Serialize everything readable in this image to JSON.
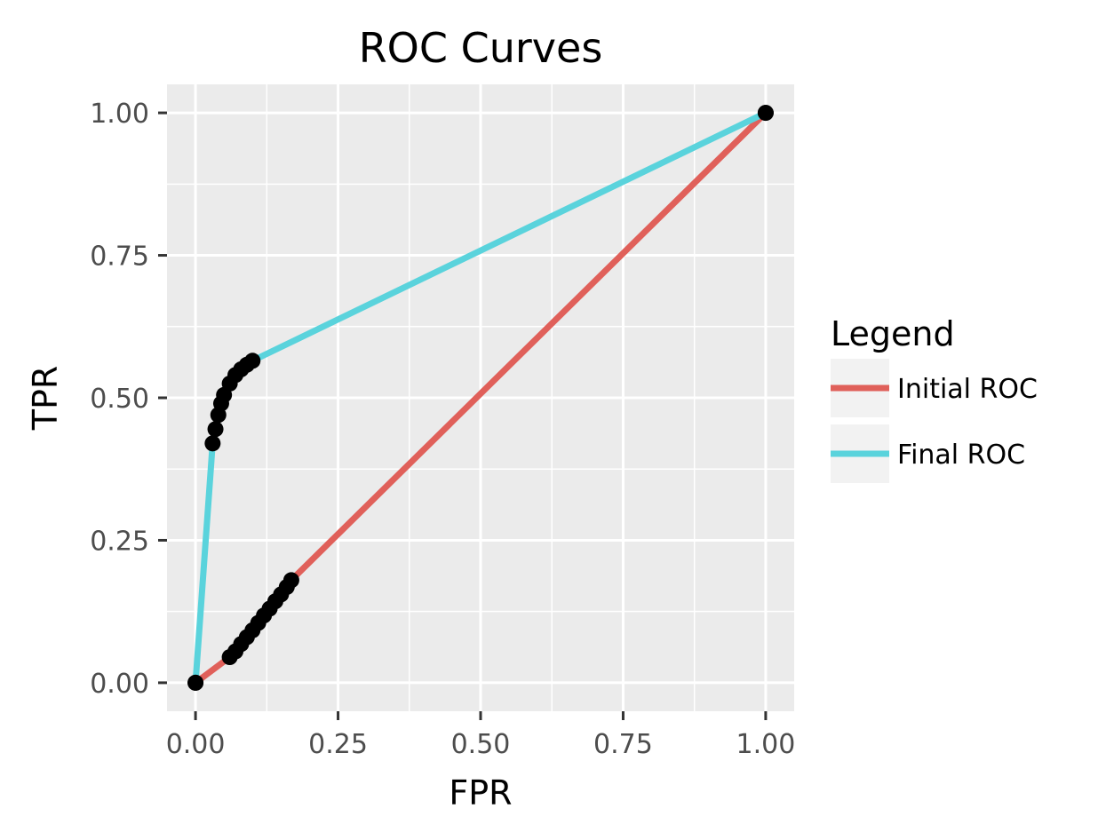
{
  "chart_data": {
    "type": "line",
    "title": "ROC Curves",
    "xlabel": "FPR",
    "ylabel": "TPR",
    "xlim": [
      -0.05,
      1.05
    ],
    "ylim": [
      -0.05,
      1.05
    ],
    "x_ticks": [
      0,
      0.25,
      0.5,
      0.75,
      1
    ],
    "y_ticks": [
      0,
      0.25,
      0.5,
      0.75,
      1
    ],
    "x_tick_labels": [
      "0.00",
      "0.25",
      "0.50",
      "0.75",
      "1.00"
    ],
    "y_tick_labels": [
      "0.00",
      "0.25",
      "0.50",
      "0.75",
      "1.00"
    ],
    "grid": true,
    "legend": {
      "title": "Legend",
      "position": "right"
    },
    "series": [
      {
        "name": "Initial ROC",
        "color": "#e0605a",
        "points": [
          [
            0,
            0
          ],
          [
            0.06,
            0.045
          ],
          [
            0.07,
            0.055
          ],
          [
            0.08,
            0.068
          ],
          [
            0.09,
            0.08
          ],
          [
            0.1,
            0.092
          ],
          [
            0.11,
            0.105
          ],
          [
            0.12,
            0.118
          ],
          [
            0.13,
            0.13
          ],
          [
            0.14,
            0.143
          ],
          [
            0.15,
            0.155
          ],
          [
            0.16,
            0.168
          ],
          [
            0.168,
            0.18
          ],
          [
            1,
            1
          ]
        ],
        "markers": [
          [
            0,
            0
          ],
          [
            0.06,
            0.045
          ],
          [
            0.07,
            0.055
          ],
          [
            0.08,
            0.068
          ],
          [
            0.09,
            0.08
          ],
          [
            0.1,
            0.092
          ],
          [
            0.11,
            0.105
          ],
          [
            0.12,
            0.118
          ],
          [
            0.13,
            0.13
          ],
          [
            0.14,
            0.143
          ],
          [
            0.15,
            0.155
          ],
          [
            0.16,
            0.168
          ],
          [
            0.168,
            0.18
          ],
          [
            1,
            1
          ]
        ]
      },
      {
        "name": "Final ROC",
        "color": "#5ad3dc",
        "points": [
          [
            0,
            0
          ],
          [
            0.03,
            0.42
          ],
          [
            0.035,
            0.445
          ],
          [
            0.04,
            0.47
          ],
          [
            0.045,
            0.49
          ],
          [
            0.05,
            0.505
          ],
          [
            0.06,
            0.525
          ],
          [
            0.07,
            0.54
          ],
          [
            0.08,
            0.55
          ],
          [
            0.09,
            0.558
          ],
          [
            0.1,
            0.565
          ],
          [
            1,
            1
          ]
        ],
        "markers": [
          [
            0,
            0
          ],
          [
            0.03,
            0.42
          ],
          [
            0.035,
            0.445
          ],
          [
            0.04,
            0.47
          ],
          [
            0.045,
            0.49
          ],
          [
            0.05,
            0.505
          ],
          [
            0.06,
            0.525
          ],
          [
            0.07,
            0.54
          ],
          [
            0.08,
            0.55
          ],
          [
            0.09,
            0.558
          ],
          [
            0.1,
            0.565
          ],
          [
            1,
            1
          ]
        ]
      }
    ]
  }
}
